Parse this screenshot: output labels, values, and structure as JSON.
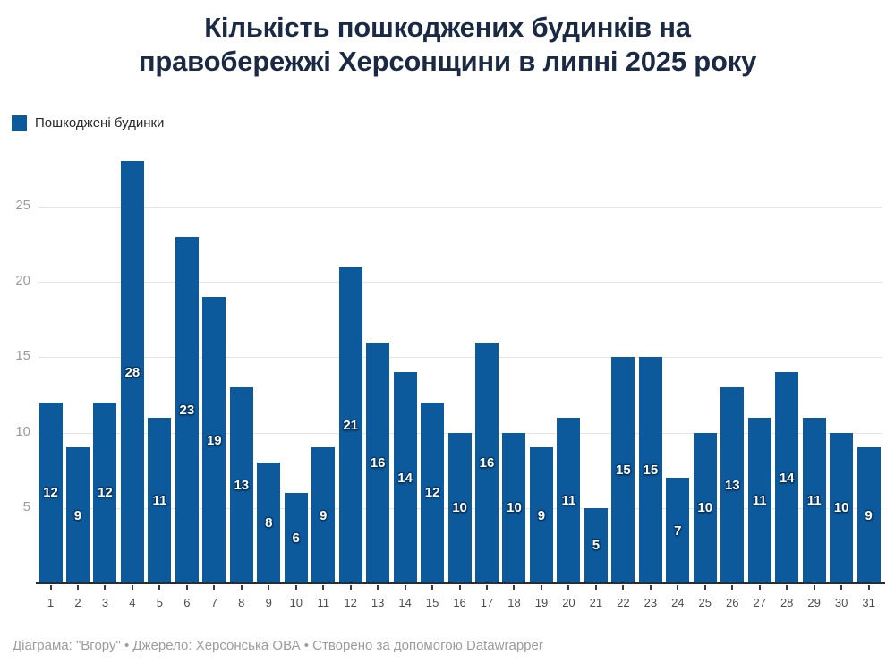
{
  "header": {
    "title_line1": "Кількість пошкоджених будинків на",
    "title_line2": "правобережжі Херсонщини в липні 2025 року"
  },
  "legend": {
    "label": "Пошкоджені будинки",
    "swatch_color": "#0c5a9c"
  },
  "chart_data": {
    "type": "bar",
    "title": "Кількість пошкоджених будинків на правобережжі Херсонщини в липні 2025 року",
    "series_name": "Пошкоджені будинки",
    "categories": [
      "1",
      "2",
      "3",
      "4",
      "5",
      "6",
      "7",
      "8",
      "9",
      "10",
      "11",
      "12",
      "13",
      "14",
      "15",
      "16",
      "17",
      "18",
      "19",
      "20",
      "21",
      "22",
      "23",
      "24",
      "25",
      "26",
      "27",
      "28",
      "29",
      "30",
      "31"
    ],
    "values": [
      12,
      9,
      12,
      28,
      11,
      23,
      19,
      13,
      8,
      6,
      9,
      21,
      16,
      14,
      12,
      10,
      16,
      10,
      9,
      11,
      5,
      15,
      15,
      7,
      10,
      13,
      11,
      14,
      11,
      10,
      9
    ],
    "xlabel": "",
    "ylabel": "",
    "yticks": [
      5,
      10,
      15,
      20,
      25
    ],
    "ylim": [
      0,
      28.7
    ],
    "bar_color": "#0c5a9c",
    "bar_label_color": "#ffffff",
    "grid": "horizontal",
    "legend_position": "top-left"
  },
  "footer": {
    "text": "Діаграма: \"Вгору\" • Джерело: Херсонська ОВА • Створено за допомогою Datawrapper"
  }
}
